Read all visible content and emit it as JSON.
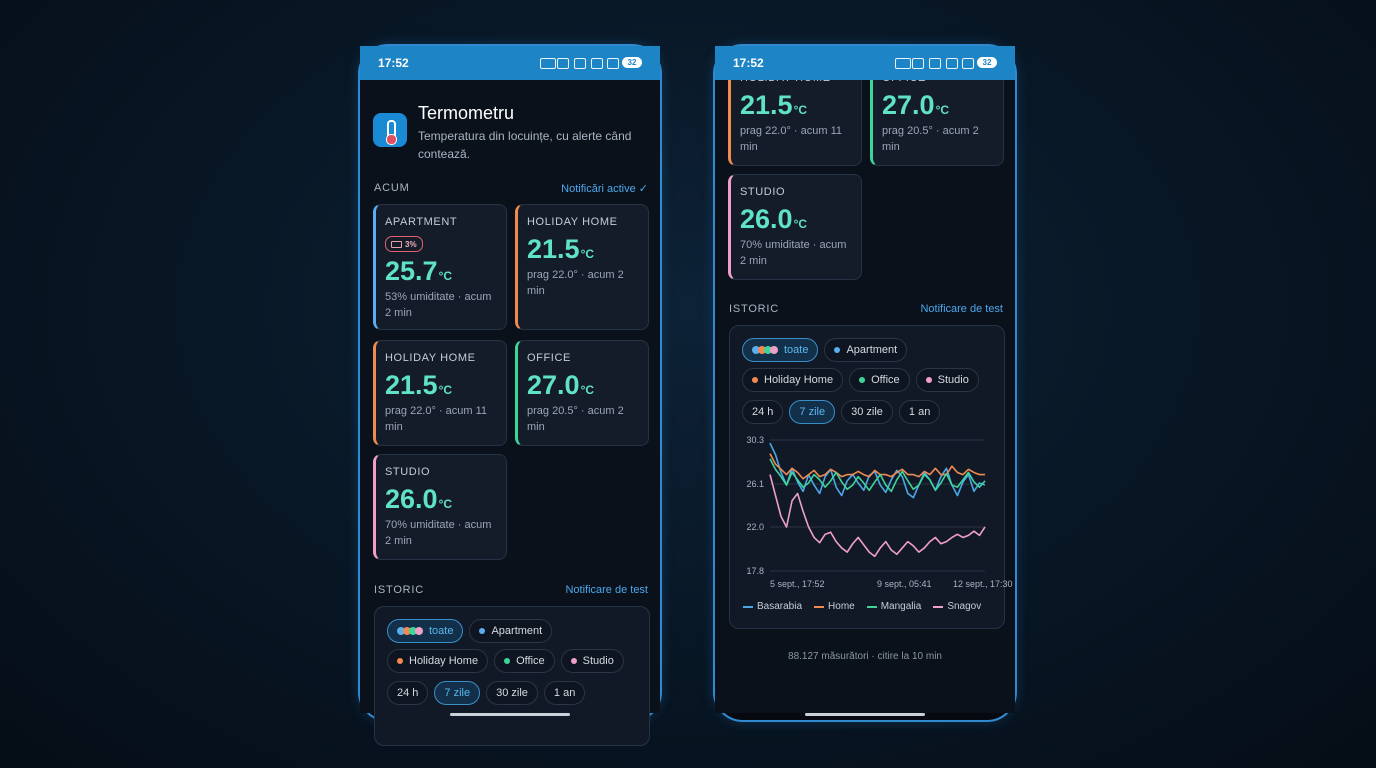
{
  "status_bar": {
    "time": "17:52",
    "battery": "32"
  },
  "app": {
    "title": "Termometru",
    "subtitle": "Temperatura din locuințe, cu alerte când contează."
  },
  "now": {
    "label": "ACUM",
    "action": "Notificări active ✓"
  },
  "cards": [
    {
      "name": "APARTMENT",
      "badge": "3%",
      "value": "25.7",
      "unit": "°C",
      "detail": "53% umiditate · acum 2 min",
      "color": "#5aaef0"
    },
    {
      "name": "HOLIDAY HOME",
      "value": "21.5",
      "unit": "°C",
      "detail": "prag 22.0° · acum 2 min",
      "color": "#f08a50"
    },
    {
      "name": "HOLIDAY HOME",
      "value": "21.5",
      "unit": "°C",
      "detail": "prag 22.0° · acum 11 min",
      "color": "#f08a50"
    },
    {
      "name": "OFFICE",
      "value": "27.0",
      "unit": "°C",
      "detail": "prag 20.5° · acum 2 min",
      "color": "#3fd49a"
    },
    {
      "name": "STUDIO",
      "value": "26.0",
      "unit": "°C",
      "detail": "70% umiditate · acum 2 min",
      "color": "#f0a0c8"
    }
  ],
  "history": {
    "label": "ISTORIC",
    "action": "Notificare de test",
    "filters": [
      {
        "label": "toate",
        "selected": true
      },
      {
        "label": "Apartment",
        "color": "#5aaef0"
      },
      {
        "label": "Holiday Home",
        "color": "#f08a50"
      },
      {
        "label": "Office",
        "color": "#3fd49a"
      },
      {
        "label": "Studio",
        "color": "#f0a0c8"
      }
    ],
    "ranges": [
      {
        "label": "24 h"
      },
      {
        "label": "7 zile",
        "selected": true
      },
      {
        "label": "30 zile"
      },
      {
        "label": "1 an"
      }
    ]
  },
  "chart_data": {
    "type": "line",
    "ylim": [
      17.8,
      30.3
    ],
    "yticks": [
      30.3,
      26.1,
      {
        "value": 22,
        "label": "22.0"
      },
      17.8
    ],
    "x_labels": [
      "5 sept., 17:52",
      "9 sept., 05:41",
      "12 sept., 17:30"
    ],
    "grid": true,
    "series": [
      {
        "name": "Basarabia",
        "color": "#4aa8e8",
        "values": [
          30.0,
          28.9,
          27.2,
          26.0,
          27.6,
          26.3,
          25.4,
          27.0,
          26.0,
          25.2,
          26.8,
          27.5,
          25.8,
          25.0,
          26.4,
          27.0,
          26.2,
          25.5,
          26.9,
          27.3,
          26.0,
          25.3,
          26.5,
          27.4,
          26.8,
          25.2,
          24.8,
          26.0,
          27.2,
          26.5,
          25.5,
          26.8,
          27.6,
          26.0,
          25.0,
          26.3,
          27.0,
          25.4,
          26.2,
          26.0
        ]
      },
      {
        "name": "Home",
        "color": "#f08a50",
        "values": [
          29.0,
          28.0,
          27.5,
          27.0,
          27.6,
          27.2,
          26.6,
          27.0,
          27.4,
          26.8,
          27.0,
          27.5,
          27.2,
          26.8,
          27.0,
          27.0,
          27.3,
          27.0,
          26.8,
          27.4,
          27.0,
          27.0,
          26.8,
          27.2,
          27.5,
          27.0,
          27.0,
          26.8,
          27.3,
          27.0,
          27.6,
          27.0,
          27.0,
          27.8,
          27.2,
          27.0,
          27.5,
          27.2,
          27.0,
          27.0
        ]
      },
      {
        "name": "Mangalia",
        "color": "#3fd49a",
        "values": [
          28.5,
          27.5,
          26.8,
          26.0,
          27.2,
          26.5,
          25.8,
          26.2,
          27.0,
          26.5,
          25.8,
          26.4,
          27.2,
          26.3,
          25.6,
          26.0,
          26.8,
          26.2,
          25.5,
          26.3,
          27.0,
          26.0,
          25.4,
          26.5,
          27.3,
          26.4,
          25.6,
          26.0,
          27.0,
          26.5,
          25.5,
          26.2,
          27.1,
          26.0,
          25.8,
          26.5,
          27.2,
          26.3,
          25.8,
          26.4
        ]
      },
      {
        "name": "Snagov",
        "color": "#f0a0c8",
        "values": [
          27.0,
          25.0,
          23.0,
          22.0,
          24.5,
          25.2,
          23.5,
          22.0,
          21.0,
          20.5,
          21.3,
          21.5,
          20.6,
          20.0,
          19.6,
          20.4,
          21.0,
          20.3,
          19.6,
          19.2,
          20.0,
          20.6,
          19.8,
          19.4,
          20.0,
          20.6,
          20.2,
          19.6,
          20.0,
          20.6,
          21.0,
          20.4,
          20.6,
          21.0,
          21.3,
          21.0,
          21.2,
          21.6,
          21.2,
          22.0
        ]
      }
    ]
  },
  "footer": "88.127 măsurători · citire la 10 min"
}
